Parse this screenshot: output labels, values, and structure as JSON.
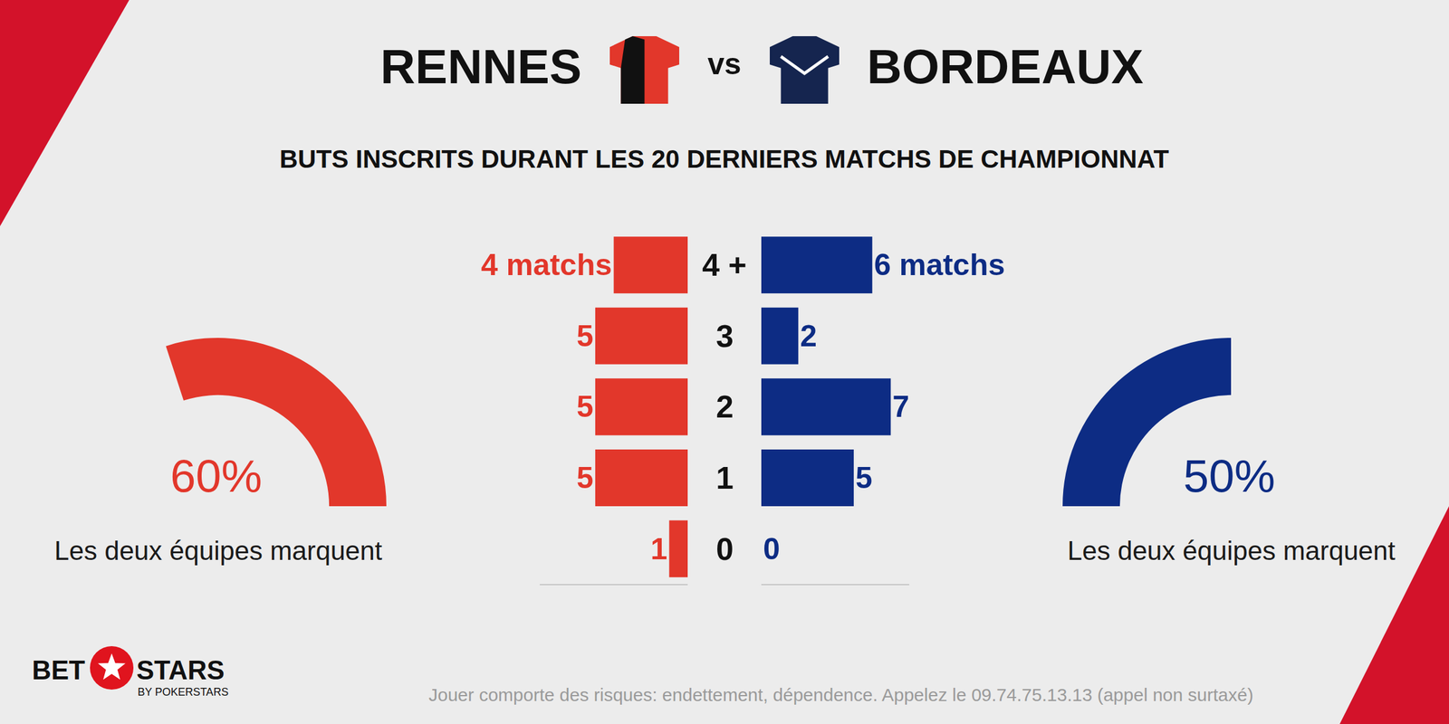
{
  "chart_data": [
    {
      "type": "bar",
      "orientation": "horizontal",
      "title": "BUTS INSCRITS DURANT LES 20 DERNIERS MATCHS DE CHAMPIONNAT",
      "categories": [
        "4 +",
        "3",
        "2",
        "1",
        "0"
      ],
      "series": [
        {
          "name": "RENNES",
          "color": "#e2372b",
          "values": [
            4,
            5,
            5,
            5,
            1
          ],
          "value_labels": [
            "4 matchs",
            "5",
            "5",
            "5",
            "1"
          ]
        },
        {
          "name": "BORDEAUX",
          "color": "#0d2c84",
          "values": [
            6,
            2,
            7,
            5,
            0
          ],
          "value_labels": [
            "6 matchs",
            "2",
            "7",
            "5",
            "0"
          ]
        }
      ],
      "xlim": [
        0,
        8
      ],
      "data_labels": true
    },
    {
      "type": "gauge",
      "title": "Les deux équipes marquent",
      "values": [
        60
      ],
      "value_labels": [
        "60%"
      ],
      "ylim": [
        0,
        100
      ],
      "color": "#e2372b"
    },
    {
      "type": "gauge",
      "title": "Les deux équipes marquent",
      "values": [
        50
      ],
      "value_labels": [
        "50%"
      ],
      "ylim": [
        0,
        100
      ],
      "color": "#0d2c84"
    }
  ],
  "header": {
    "vs": "vs"
  },
  "footer": {
    "brand_left": "BET",
    "brand_right": "STARS",
    "brand_sub": "BY POKERSTARS",
    "disclaimer": "Jouer comporte des risques: endettement, dépendence. Appelez le 09.74.75.13.13 (appel non surtaxé)"
  }
}
